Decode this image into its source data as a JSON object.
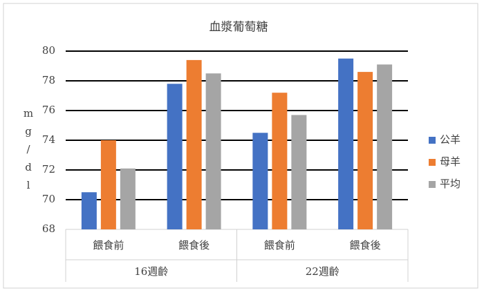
{
  "chart_data": {
    "type": "bar",
    "title": "血漿葡萄糖",
    "y_label": "mg/dl",
    "category_groups": [
      {
        "name": "16週齡",
        "categories": [
          "餵食前",
          "餵食後"
        ]
      },
      {
        "name": "22週齡",
        "categories": [
          "餵食前",
          "餵食後"
        ]
      }
    ],
    "series": [
      {
        "name": "公羊",
        "color": "#4472c4",
        "values": [
          70.5,
          77.8,
          74.5,
          79.5
        ]
      },
      {
        "name": "母羊",
        "color": "#ed7d31",
        "values": [
          74.0,
          79.4,
          77.2,
          78.6
        ]
      },
      {
        "name": "平均",
        "color": "#a5a5a5",
        "values": [
          72.1,
          78.5,
          75.7,
          79.1
        ]
      }
    ],
    "ylim": [
      68,
      80
    ],
    "yticks": [
      68,
      70,
      72,
      74,
      76,
      78,
      80
    ],
    "grid": true,
    "legend": "right"
  }
}
